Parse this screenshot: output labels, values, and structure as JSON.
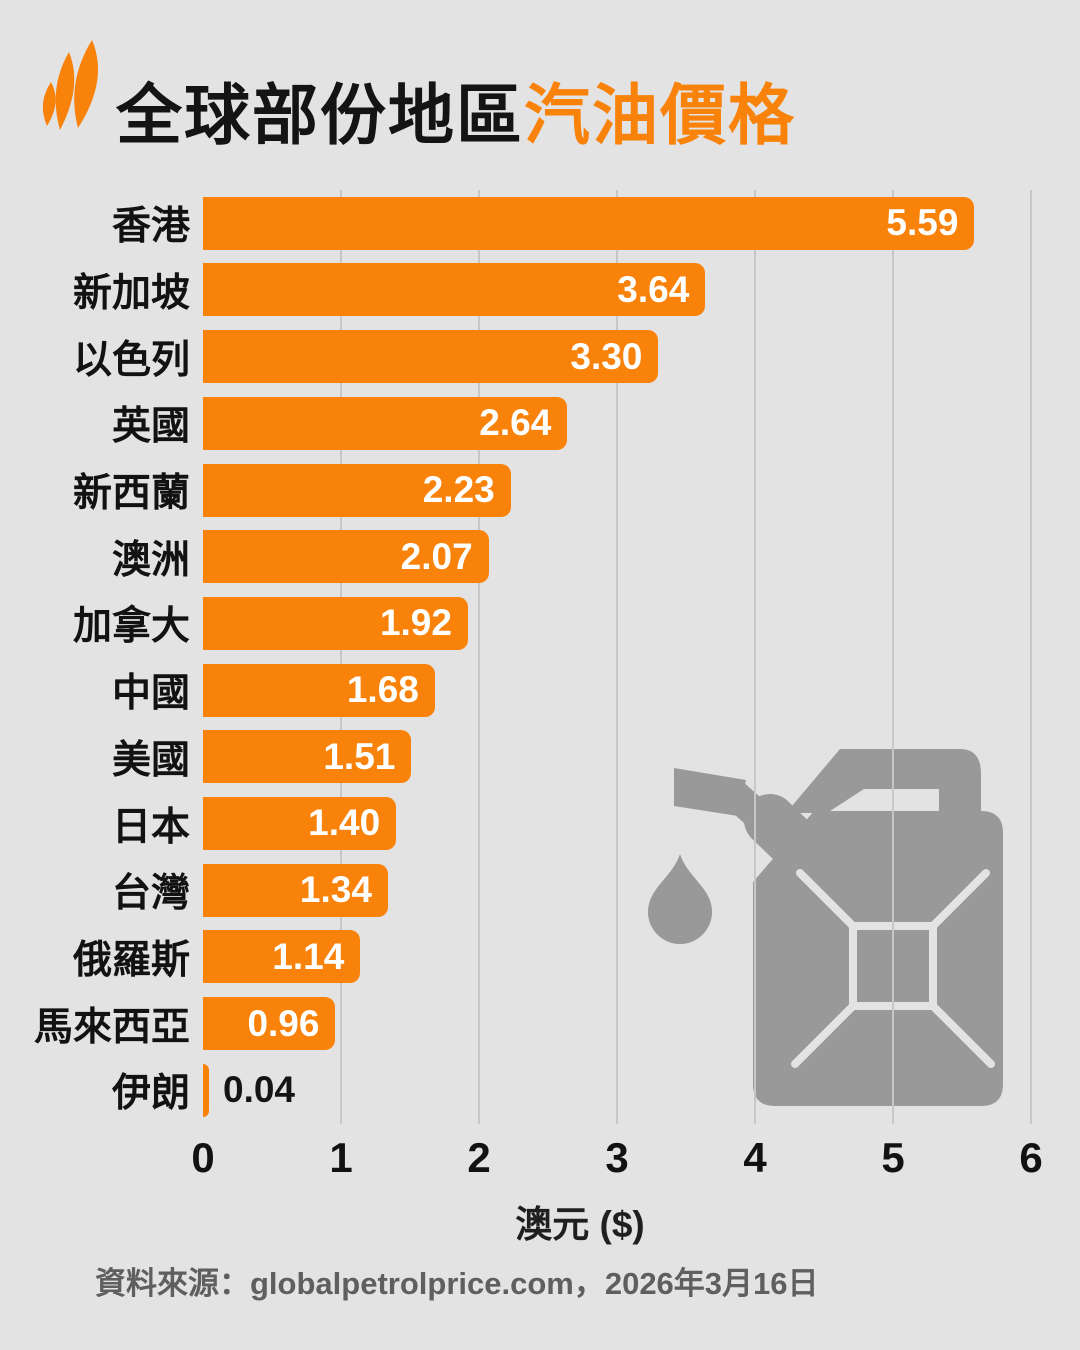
{
  "page": {
    "background": "#e3e3e3"
  },
  "header": {
    "logo_icon": "sbs-mercator-logo",
    "title_black": "全球部份地區",
    "title_orange": "汽油價格"
  },
  "chart_data": {
    "type": "bar",
    "orientation": "horizontal",
    "title": "全球部份地區汽油價格",
    "categories": [
      "香港",
      "新加坡",
      "以色列",
      "英國",
      "新西蘭",
      "澳洲",
      "加拿大",
      "中國",
      "美國",
      "日本",
      "台灣",
      "俄羅斯",
      "馬來西亞",
      "伊朗"
    ],
    "values": [
      5.59,
      3.64,
      3.3,
      2.64,
      2.23,
      2.07,
      1.92,
      1.68,
      1.51,
      1.4,
      1.34,
      1.14,
      0.96,
      0.04
    ],
    "value_labels": [
      "5.59",
      "3.64",
      "3.30",
      "2.64",
      "2.23",
      "2.07",
      "1.92",
      "1.68",
      "1.51",
      "1.40",
      "1.34",
      "1.14",
      "0.96",
      "0.04"
    ],
    "xlabel": "澳元 ($)",
    "xlim": [
      0,
      6
    ],
    "x_ticks": [
      "0",
      "1",
      "2",
      "3",
      "4",
      "5",
      "6"
    ],
    "grid": true,
    "legend": false,
    "bar_color": "#f8820a",
    "value_color_inside": "#ffffff",
    "value_color_outside": "#141414",
    "gridline_color": "#c7c7c7"
  },
  "decoration": {
    "jerrycan_icon": "petrol-jerry-can-with-oil-drop",
    "jerrycan_color": "#999999"
  },
  "footer": {
    "source": "資料來源：globalpetrolprice.com，2026年3月16日"
  }
}
